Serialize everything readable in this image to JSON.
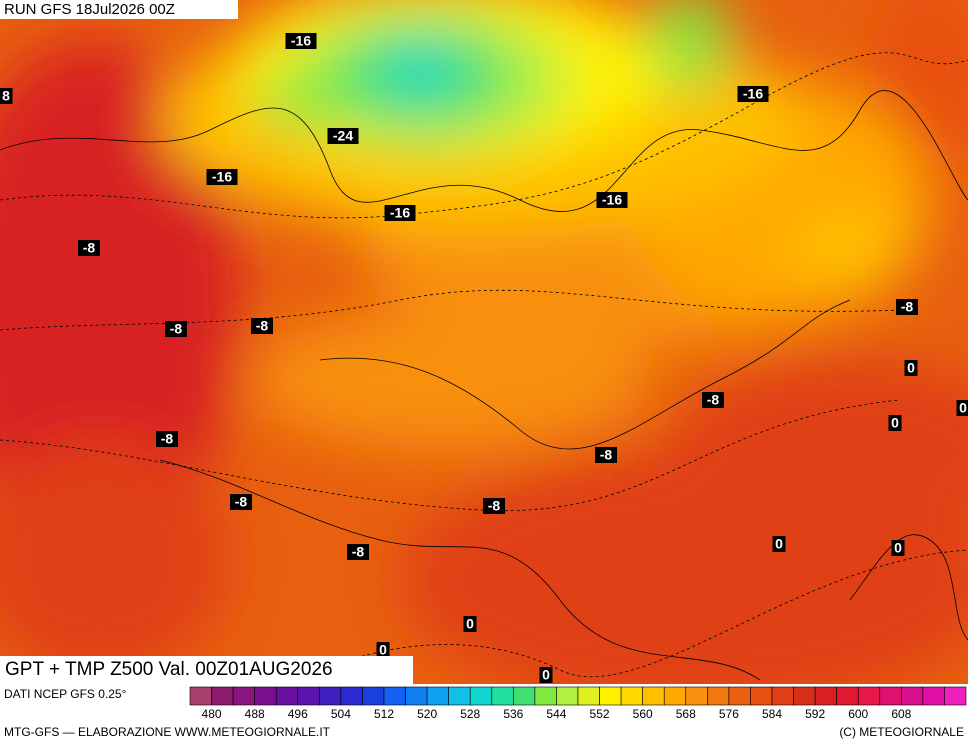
{
  "header": {
    "run": "RUN GFS 18Jul2026 00Z"
  },
  "map": {
    "title": "GPT + TMP Z500 Val. 00Z01AUG2026",
    "contour_labels": [
      "-16",
      "8",
      "-16",
      "-24",
      "-16",
      "-16",
      "-16",
      "-8",
      "-8",
      "-8",
      "-8",
      "0",
      "-8",
      "0",
      "-8",
      "0",
      "-8",
      "-8",
      "-8",
      "0",
      "0",
      "-8",
      "0",
      "0",
      "0"
    ]
  },
  "legend": {
    "source": "DATI NCEP GFS 0.25°",
    "ticks": [
      480,
      488,
      496,
      504,
      512,
      520,
      528,
      536,
      544,
      552,
      560,
      568,
      576,
      584,
      592,
      600,
      608
    ],
    "colors": [
      "#a8406e",
      "#8e1a6e",
      "#8a1480",
      "#7a1090",
      "#6a10a0",
      "#5a14b0",
      "#4020c0",
      "#2a2ad0",
      "#1a40e0",
      "#1460f0",
      "#1080f0",
      "#10a0f0",
      "#10c0e8",
      "#10d8d0",
      "#20e0a0",
      "#40e070",
      "#80e840",
      "#b0f040",
      "#e0f020",
      "#fff000",
      "#ffd800",
      "#ffc000",
      "#ffa800",
      "#f89010",
      "#f07810",
      "#e86010",
      "#e85010",
      "#e04018",
      "#d83018",
      "#d82020",
      "#e01830",
      "#e81848",
      "#e01070",
      "#d81090",
      "#e010a8",
      "#f020c0"
    ]
  },
  "footer": {
    "left": "MTG-GFS — ELABORAZIONE WWW.METEOGIORNALE.IT",
    "right": "(C) METEOGIORNALE"
  }
}
